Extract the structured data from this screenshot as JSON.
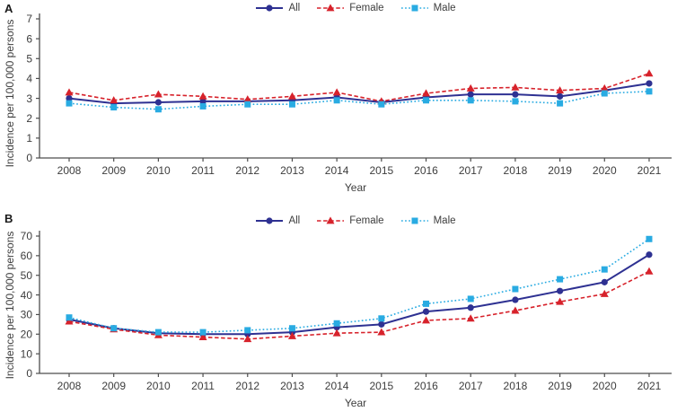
{
  "figure": {
    "background": "#ffffff",
    "text_color": "#3d3d3d",
    "axis_color": "#4d4d4d"
  },
  "chart_data": [
    {
      "type": "line",
      "panel_label": "A",
      "xlabel": "Year",
      "ylabel": "Incidence per 100,000 persons",
      "x": [
        "2008",
        "2009",
        "2010",
        "2011",
        "2012",
        "2013",
        "2014",
        "2015",
        "2016",
        "2017",
        "2018",
        "2019",
        "2020",
        "2021"
      ],
      "ylim": [
        0,
        7
      ],
      "yticks": [
        0,
        1,
        2,
        3,
        4,
        5,
        6,
        7
      ],
      "grid": false,
      "legend_position": "top-center",
      "series": [
        {
          "name": "All",
          "color": "#2e3192",
          "line_style": "solid",
          "marker": "circle",
          "values": [
            3.0,
            2.75,
            2.8,
            2.85,
            2.85,
            2.9,
            3.05,
            2.8,
            3.05,
            3.2,
            3.2,
            3.1,
            3.4,
            3.75
          ]
        },
        {
          "name": "Female",
          "color": "#d7222b",
          "line_style": "dashed",
          "marker": "triangle",
          "values": [
            3.3,
            2.9,
            3.2,
            3.1,
            2.95,
            3.1,
            3.3,
            2.85,
            3.25,
            3.5,
            3.55,
            3.4,
            3.5,
            4.25
          ]
        },
        {
          "name": "Male",
          "color": "#29abe2",
          "line_style": "dotted",
          "marker": "square",
          "values": [
            2.75,
            2.55,
            2.45,
            2.6,
            2.7,
            2.7,
            2.9,
            2.7,
            2.9,
            2.9,
            2.85,
            2.75,
            3.25,
            3.35
          ]
        }
      ]
    },
    {
      "type": "line",
      "panel_label": "B",
      "xlabel": "Year",
      "ylabel": "Incidence per 100,000 persons",
      "x": [
        "2008",
        "2009",
        "2010",
        "2011",
        "2012",
        "2013",
        "2014",
        "2015",
        "2016",
        "2017",
        "2018",
        "2019",
        "2020",
        "2021"
      ],
      "ylim": [
        0,
        70
      ],
      "yticks": [
        0,
        10,
        20,
        30,
        40,
        50,
        60,
        70
      ],
      "grid": false,
      "legend_position": "top-center",
      "series": [
        {
          "name": "All",
          "color": "#2e3192",
          "line_style": "solid",
          "marker": "circle",
          "values": [
            27.5,
            23,
            20.5,
            20,
            20,
            21,
            23.5,
            25,
            31.5,
            33.5,
            37.5,
            42,
            46.5,
            60.5
          ]
        },
        {
          "name": "Female",
          "color": "#d7222b",
          "line_style": "dashed",
          "marker": "triangle",
          "values": [
            26.5,
            22.5,
            19.5,
            18.5,
            17.5,
            19,
            20.5,
            21,
            27,
            28,
            32,
            36.5,
            40.5,
            52
          ]
        },
        {
          "name": "Male",
          "color": "#29abe2",
          "line_style": "dotted",
          "marker": "square",
          "values": [
            28.5,
            23,
            21,
            21,
            22,
            23,
            25.5,
            28,
            35.5,
            38,
            43,
            48,
            53,
            68.5
          ]
        }
      ]
    }
  ]
}
